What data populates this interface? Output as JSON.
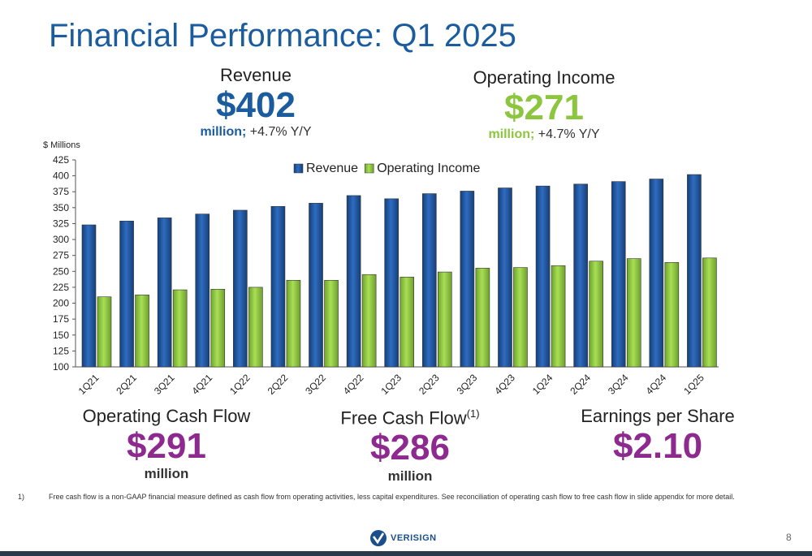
{
  "title": "Financial Performance: Q1 2025",
  "metrics": {
    "revenue": {
      "label": "Revenue",
      "value": "$402",
      "unit": "million;",
      "change": "+4.7% Y/Y"
    },
    "operating_income": {
      "label": "Operating Income",
      "value": "$271",
      "unit": "million;",
      "change": "+4.7% Y/Y"
    },
    "operating_cash_flow": {
      "label": "Operating Cash Flow",
      "value": "$291",
      "unit": "million"
    },
    "free_cash_flow": {
      "label": "Free Cash Flow",
      "footnote_marker": "(1)",
      "value": "$286",
      "unit": "million"
    },
    "eps": {
      "label": "Earnings per Share",
      "value": "$2.10"
    }
  },
  "chart_data": {
    "type": "bar",
    "ylabel": "$ Millions",
    "ylim": [
      100,
      425
    ],
    "yticks": [
      100,
      125,
      150,
      175,
      200,
      225,
      250,
      275,
      300,
      325,
      350,
      375,
      400,
      425
    ],
    "categories": [
      "1Q21",
      "2Q21",
      "3Q21",
      "4Q21",
      "1Q22",
      "2Q22",
      "3Q22",
      "4Q22",
      "1Q23",
      "2Q23",
      "3Q23",
      "4Q23",
      "1Q24",
      "2Q24",
      "3Q24",
      "4Q24",
      "1Q25"
    ],
    "series": [
      {
        "name": "Revenue",
        "color": "#1f5aa6",
        "values": [
          323,
          329,
          334,
          340,
          346,
          352,
          357,
          369,
          364,
          372,
          376,
          381,
          384,
          387,
          391,
          395,
          402
        ]
      },
      {
        "name": "Operating Income",
        "color": "#8cc63f",
        "values": [
          210,
          213,
          221,
          222,
          225,
          236,
          236,
          245,
          241,
          249,
          255,
          256,
          259,
          266,
          270,
          264,
          271
        ]
      }
    ],
    "legend_position": "top",
    "grid": false
  },
  "footnote": {
    "number": "1)",
    "text": "Free cash flow is a non-GAAP financial measure defined as cash flow from operating activities, less capital expenditures. See reconciliation of operating cash flow to free cash flow in slide appendix for more detail."
  },
  "logo": {
    "text": "VERISIGN",
    "icon": "verisign-check-icon"
  },
  "page_number": "8"
}
